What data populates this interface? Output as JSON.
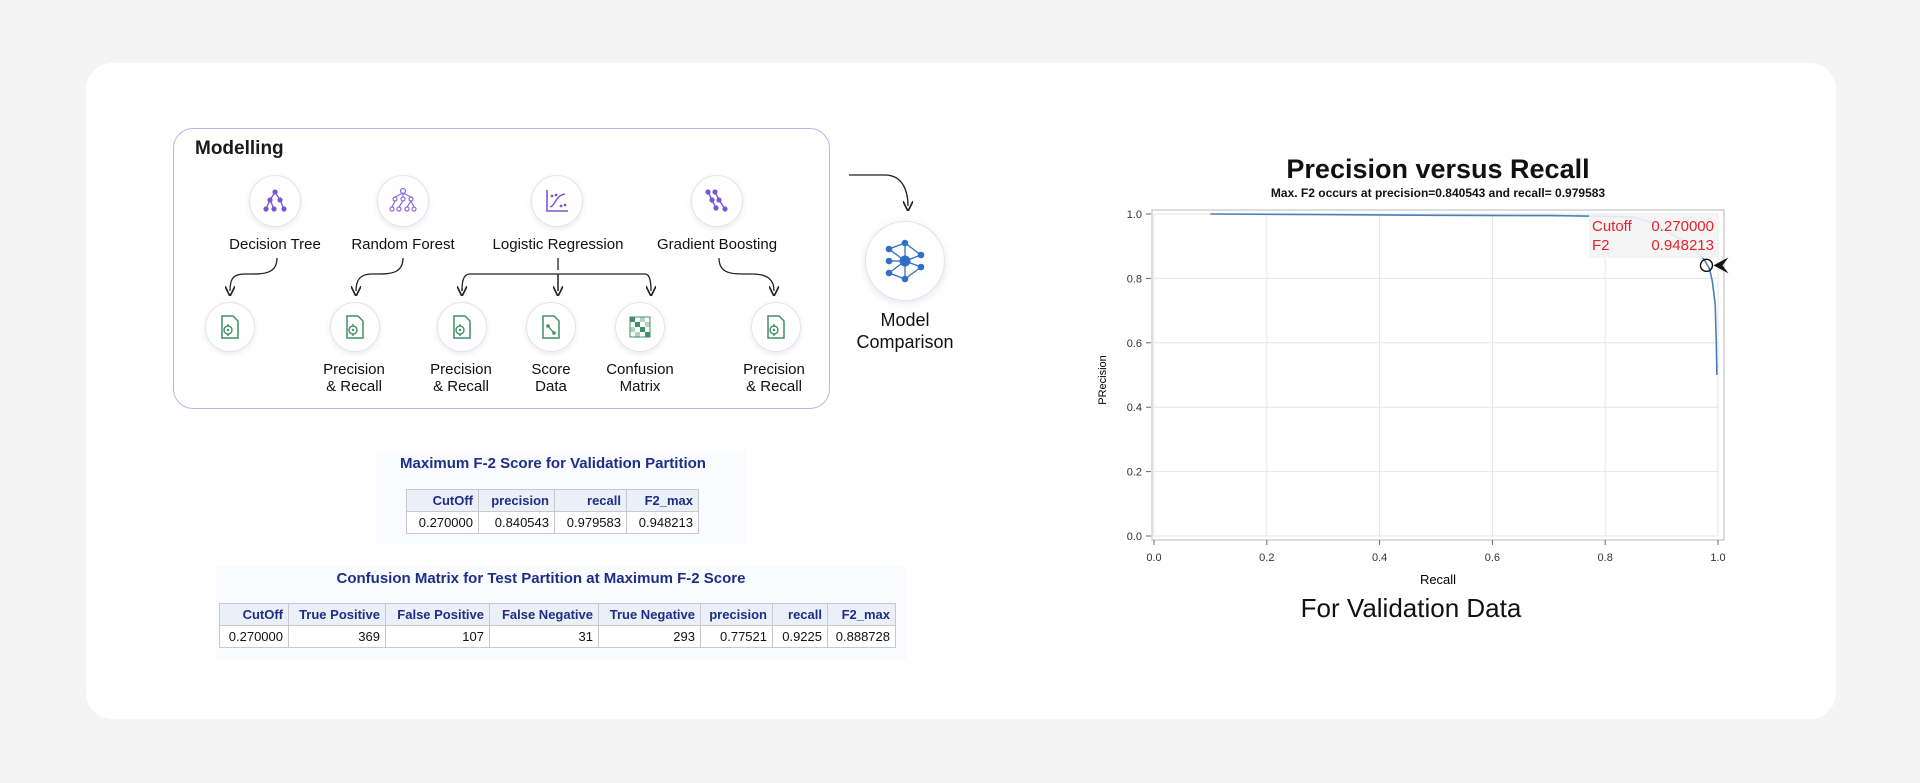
{
  "modelling": {
    "title": "Modelling",
    "models": [
      {
        "label": "Decision Tree",
        "icon": "decision-tree-icon"
      },
      {
        "label": "Random Forest",
        "icon": "random-forest-icon"
      },
      {
        "label": "Logistic Regression",
        "icon": "scatter-plot-icon"
      },
      {
        "label": "Gradient Boosting",
        "icon": "gradient-boosting-icon"
      }
    ],
    "outputs": [
      {
        "line1": "",
        "line2": "",
        "icon": "precision-recall-icon"
      },
      {
        "line1": "Precision",
        "line2": "& Recall",
        "icon": "precision-recall-icon"
      },
      {
        "line1": "Precision",
        "line2": "& Recall",
        "icon": "precision-recall-icon"
      },
      {
        "line1": "Score",
        "line2": "Data",
        "icon": "score-data-icon"
      },
      {
        "line1": "Confusion",
        "line2": "Matrix",
        "icon": "confusion-matrix-icon"
      },
      {
        "line1": "Precision",
        "line2": "& Recall",
        "icon": "precision-recall-icon"
      }
    ]
  },
  "model_comparison": {
    "line1": "Model",
    "line2": "Comparison",
    "icon": "neural-network-icon"
  },
  "validation_table": {
    "title": "Maximum F-2 Score for Validation Partition",
    "headers": [
      "CutOff",
      "precision",
      "recall",
      "F2_max"
    ],
    "row": [
      "0.270000",
      "0.840543",
      "0.979583",
      "0.948213"
    ]
  },
  "test_table": {
    "title": "Confusion Matrix for Test Partition at Maximum F-2 Score",
    "headers": [
      "CutOff",
      "True Positive",
      "False Positive",
      "False Negative",
      "True Negative",
      "precision",
      "recall",
      "F2_max"
    ],
    "row": [
      "0.270000",
      "369",
      "107",
      "31",
      "293",
      "0.77521",
      "0.9225",
      "0.888728"
    ]
  },
  "chart_data": {
    "type": "line",
    "title": "Precision versus Recall",
    "subtitle": "Max. F2 occurs at precision=0.840543 and recall= 0.979583",
    "xlabel": "Recall",
    "ylabel": "PRecision",
    "xlim": [
      0.0,
      1.0
    ],
    "ylim": [
      0.0,
      1.0
    ],
    "x_ticks": [
      "0.0",
      "0.2",
      "0.4",
      "0.6",
      "0.8",
      "1.0"
    ],
    "y_ticks": [
      "0.0",
      "0.2",
      "0.4",
      "0.6",
      "0.8",
      "1.0"
    ],
    "grid": true,
    "line_color": "#4a7fb8",
    "series": [
      {
        "x": [
          0.1,
          0.3,
          0.5,
          0.7,
          0.8,
          0.85,
          0.88,
          0.91,
          0.94,
          0.96,
          0.975,
          0.98,
          0.985,
          0.99,
          0.995,
          0.997,
          0.998
        ],
        "y": [
          1.0,
          0.998,
          0.996,
          0.995,
          0.993,
          0.99,
          0.975,
          0.945,
          0.915,
          0.885,
          0.86,
          0.845,
          0.83,
          0.79,
          0.72,
          0.6,
          0.5
        ]
      }
    ],
    "marker": {
      "x": 0.979583,
      "y": 0.840543
    },
    "annotation": {
      "cutoff_label": "Cutoff",
      "cutoff_value": "0.270000",
      "f2_label": "F2",
      "f2_value": "0.948213",
      "color": "#e8202a"
    },
    "footer": "For Validation Data"
  }
}
